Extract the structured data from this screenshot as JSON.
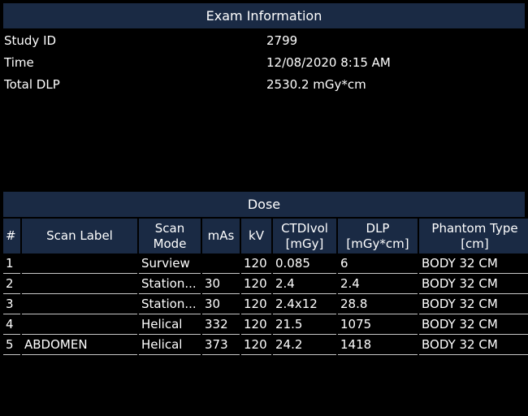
{
  "exam": {
    "title": "Exam Information",
    "study_id_label": "Study ID",
    "study_id": "2799",
    "time_label": "Time",
    "time": "12/08/2020 8:15 AM",
    "total_dlp_label": "Total DLP",
    "total_dlp": "2530.2 mGy*cm"
  },
  "dose": {
    "title": "Dose",
    "columns": {
      "num": "#",
      "scan_label": "Scan Label",
      "scan_mode_l1": "Scan",
      "scan_mode_l2": "Mode",
      "mas": "mAs",
      "kv": "kV",
      "ctdivol_l1": "CTDIvol",
      "ctdivol_l2": "[mGy]",
      "dlp_l1": "DLP",
      "dlp_l2": "[mGy*cm]",
      "phantom_l1": "Phantom Type",
      "phantom_l2": "[cm]"
    },
    "rows": [
      {
        "num": "1",
        "scan_label": "",
        "scan_mode": "Surview",
        "mas": "",
        "kv": "120",
        "ctdivol": "0.085",
        "dlp": "6",
        "phantom": "BODY 32 CM"
      },
      {
        "num": "2",
        "scan_label": "",
        "scan_mode": "Station...",
        "mas": "30",
        "kv": "120",
        "ctdivol": "2.4",
        "dlp": "2.4",
        "phantom": "BODY 32 CM"
      },
      {
        "num": "3",
        "scan_label": "",
        "scan_mode": "Station...",
        "mas": "30",
        "kv": "120",
        "ctdivol": "2.4x12",
        "dlp": "28.8",
        "phantom": "BODY 32 CM"
      },
      {
        "num": "4",
        "scan_label": "",
        "scan_mode": "Helical",
        "mas": "332",
        "kv": "120",
        "ctdivol": "21.5",
        "dlp": "1075",
        "phantom": "BODY 32 CM"
      },
      {
        "num": "5",
        "scan_label": "ABDOMEN",
        "scan_mode": "Helical",
        "mas": "373",
        "kv": "120",
        "ctdivol": "24.2",
        "dlp": "1418",
        "phantom": "BODY 32 CM"
      }
    ]
  },
  "colors": {
    "header_bg": "#1a2a44",
    "background": "#000000",
    "text": "#ffffff"
  }
}
